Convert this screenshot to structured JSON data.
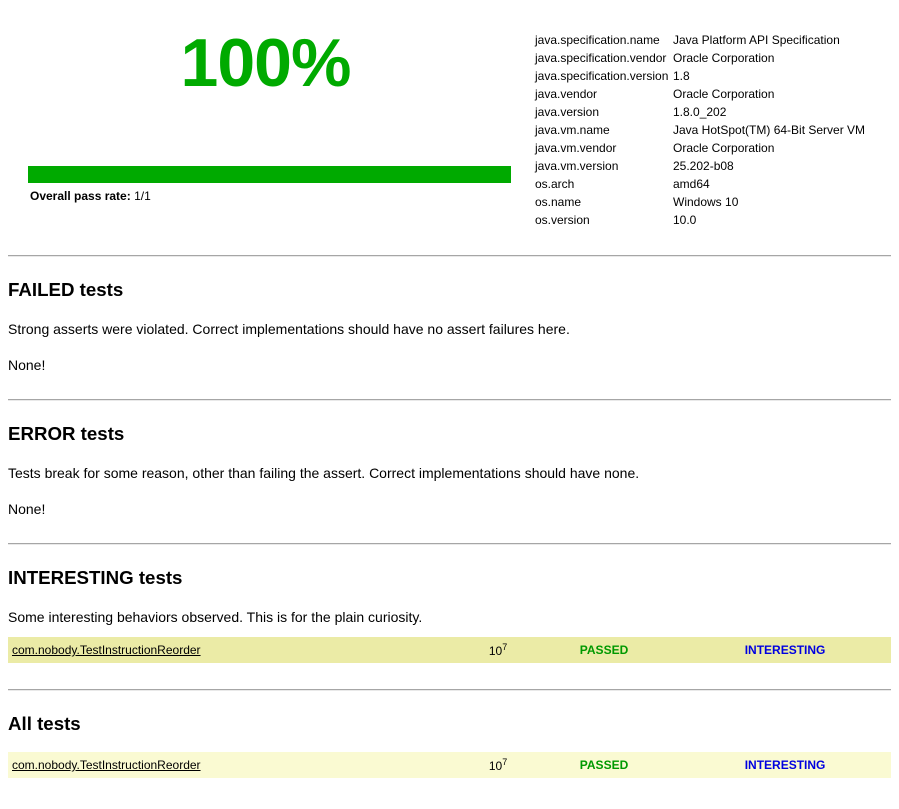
{
  "colors": {
    "accent_green": "#00AA00",
    "passed_text": "#009900",
    "interesting_text": "#0000E0",
    "interesting_row_bg": "#EBEBA6",
    "all_row_bg": "#FAFAD2"
  },
  "summary": {
    "pass_percent": "100%",
    "pass_rate_label": "Overall pass rate:",
    "pass_rate_value": "1/1"
  },
  "environment": {
    "rows": [
      {
        "name": "java.specification.name",
        "value": "Java Platform API Specification"
      },
      {
        "name": "java.specification.vendor",
        "value": "Oracle Corporation"
      },
      {
        "name": "java.specification.version",
        "value": "1.8"
      },
      {
        "name": "java.vendor",
        "value": "Oracle Corporation"
      },
      {
        "name": "java.version",
        "value": "1.8.0_202"
      },
      {
        "name": "java.vm.name",
        "value": "Java HotSpot(TM) 64-Bit Server VM"
      },
      {
        "name": "java.vm.vendor",
        "value": "Oracle Corporation"
      },
      {
        "name": "java.vm.version",
        "value": "25.202-b08"
      },
      {
        "name": "os.arch",
        "value": "amd64"
      },
      {
        "name": "os.name",
        "value": "Windows 10"
      },
      {
        "name": "os.version",
        "value": "10.0"
      }
    ]
  },
  "sections": {
    "failed": {
      "heading": "FAILED tests",
      "description": "Strong asserts were violated. Correct implementations should have no assert failures here.",
      "empty": "None!"
    },
    "error": {
      "heading": "ERROR tests",
      "description": "Tests break for some reason, other than failing the assert. Correct implementations should have none.",
      "empty": "None!"
    },
    "interesting": {
      "heading": "INTERESTING tests",
      "description": "Some interesting behaviors observed. This is for the plain curiosity.",
      "row": {
        "test": "com.nobody.TestInstructionReorder",
        "count_base": "10",
        "count_exp": "7",
        "result": "PASSED",
        "flag": "INTERESTING"
      }
    },
    "all": {
      "heading": "All tests",
      "row": {
        "test": "com.nobody.TestInstructionReorder",
        "count_base": "10",
        "count_exp": "7",
        "result": "PASSED",
        "flag": "INTERESTING"
      }
    }
  }
}
